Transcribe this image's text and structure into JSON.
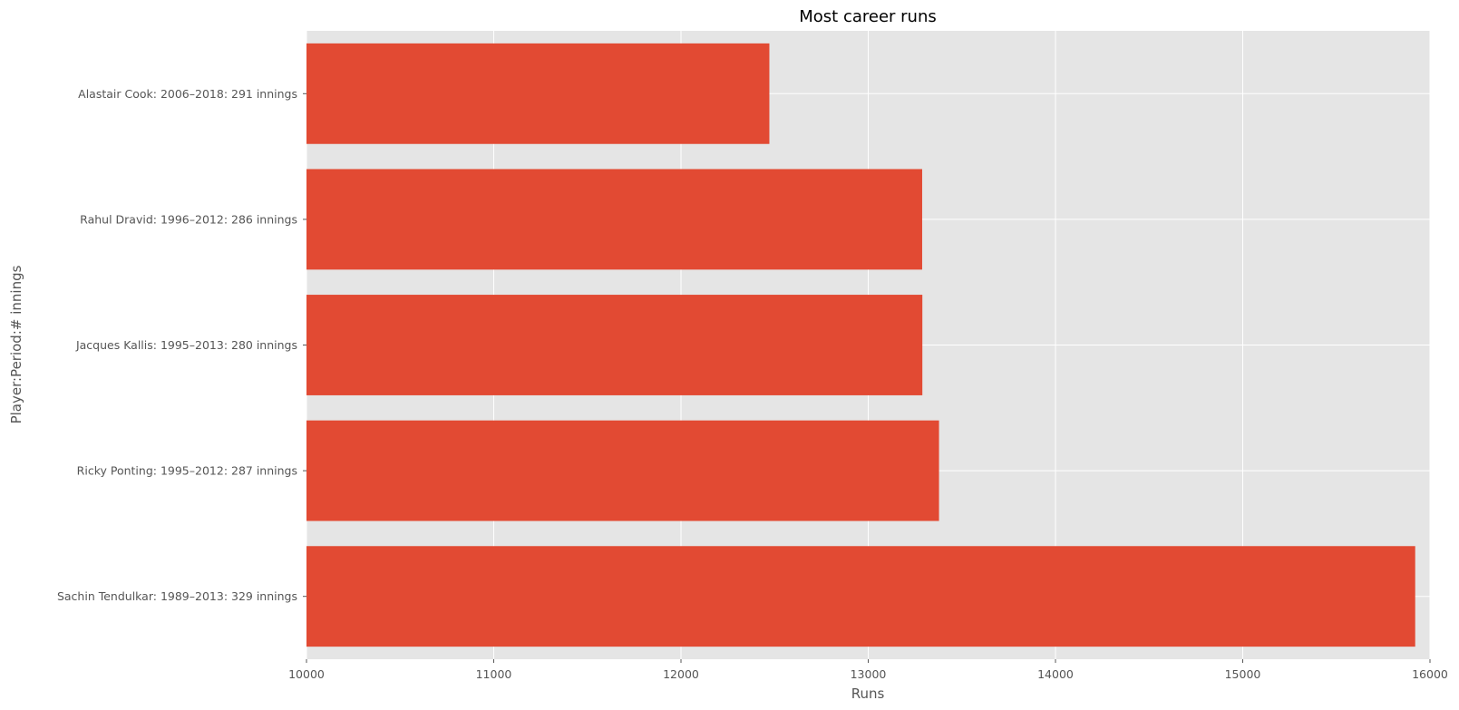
{
  "chart_data": {
    "type": "bar",
    "orientation": "horizontal",
    "title": "Most career runs",
    "xlabel": "Runs",
    "ylabel": "Player:Period:# innings",
    "xlim": [
      10000,
      16000
    ],
    "xticks": [
      "10000",
      "11000",
      "12000",
      "13000",
      "14000",
      "15000",
      "16000"
    ],
    "grid": true,
    "categories": [
      "Alastair Cook: 2006–2018: 291 innings",
      "Rahul Dravid: 1996–2012: 286 innings",
      "Jacques Kallis: 1995–2013: 280 innings",
      "Ricky Ponting: 1995–2012: 287 innings",
      "Sachin Tendulkar: 1989–2013: 329 innings"
    ],
    "values": [
      12472,
      13288,
      13289,
      13378,
      15921
    ]
  },
  "colors": {
    "bar": "#E24A33",
    "plot_background": "#E5E5E5",
    "grid": "#FFFFFF"
  }
}
